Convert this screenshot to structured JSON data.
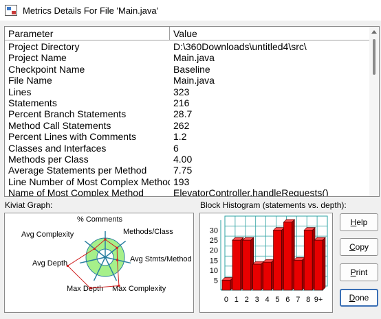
{
  "window": {
    "title": "Metrics Details For File 'Main.java'"
  },
  "table": {
    "headers": [
      "Parameter",
      "Value"
    ],
    "rows": [
      [
        "Project Directory",
        "D:\\360Downloads\\untitled4\\src\\"
      ],
      [
        "Project Name",
        "Main.java"
      ],
      [
        "Checkpoint Name",
        "Baseline"
      ],
      [
        "File Name",
        "Main.java"
      ],
      [
        "Lines",
        "323"
      ],
      [
        "Statements",
        "216"
      ],
      [
        "Percent Branch Statements",
        "28.7"
      ],
      [
        "Method Call Statements",
        "262"
      ],
      [
        "Percent Lines with Comments",
        "1.2"
      ],
      [
        "Classes and Interfaces",
        "6"
      ],
      [
        "Methods per Class",
        "4.00"
      ],
      [
        "Average Statements per Method",
        "7.75"
      ],
      [
        "Line Number of Most Complex Method",
        "193"
      ],
      [
        "Name of Most Complex Method",
        "ElevatorController.handleRequests()"
      ]
    ]
  },
  "kiviat": {
    "label": "Kiviat Graph:",
    "axes": [
      "% Comments",
      "Methods/Class",
      "Avg Stmts/Method",
      "Max Complexity",
      "Max Depth",
      "Avg Depth",
      "Avg Complexity"
    ],
    "colors": {
      "ring": "#a6f08a",
      "axis": "#2a7fa0",
      "plot": "#d02020"
    }
  },
  "histogram": {
    "label": "Block Histogram (statements vs. depth):",
    "colors": {
      "bar": "#e80000",
      "grid": "#2aa0a0"
    }
  },
  "chart_data": {
    "type": "bar",
    "title": "Block Histogram (statements vs. depth):",
    "categories": [
      "0",
      "1",
      "2",
      "3",
      "4",
      "5",
      "6",
      "7",
      "8",
      "9+"
    ],
    "values": [
      5,
      25,
      25,
      13,
      14,
      30,
      34,
      15,
      30,
      25
    ],
    "ylim": [
      0,
      35
    ],
    "yticks": [
      5,
      10,
      15,
      20,
      25,
      30
    ],
    "grid": true
  },
  "buttons": {
    "help": {
      "mnemonic": "H",
      "rest": "elp"
    },
    "copy": {
      "mnemonic": "C",
      "rest": "opy"
    },
    "print": {
      "mnemonic": "P",
      "rest": "rint"
    },
    "done": {
      "mnemonic": "D",
      "rest": "one"
    }
  }
}
